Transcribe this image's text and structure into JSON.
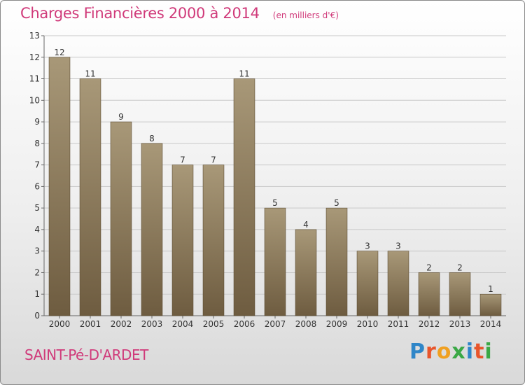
{
  "header": {
    "title": "Charges Financières 2000 à 2014",
    "subtitle": "(en milliers d'€)"
  },
  "footer": {
    "commune": "SAINT-Pé-D'ARDET",
    "brand": "Proxiti"
  },
  "colors": {
    "title": "#d03a7a",
    "bar_light": "#a89878",
    "bar_dark": "#6e5c40",
    "grid": "#c8c8c8",
    "brand_letters": [
      "#2f86c8",
      "#e8552b",
      "#f0a020",
      "#3aa845",
      "#2f86c8",
      "#e8552b",
      "#3aa845"
    ]
  },
  "chart_data": {
    "type": "bar",
    "categories": [
      "2000",
      "2001",
      "2002",
      "2003",
      "2004",
      "2005",
      "2006",
      "2007",
      "2008",
      "2009",
      "2010",
      "2011",
      "2012",
      "2013",
      "2014"
    ],
    "values": [
      12,
      11,
      9,
      8,
      7,
      7,
      11,
      5,
      4,
      5,
      3,
      3,
      2,
      2,
      1
    ],
    "title": "Charges Financières 2000 à 2014",
    "ylabel": "",
    "xlabel": "",
    "ylim": [
      0,
      13
    ],
    "yticks": [
      0,
      1,
      2,
      3,
      4,
      5,
      6,
      7,
      8,
      9,
      10,
      11,
      12,
      13
    ],
    "grid": true,
    "data_labels": true
  }
}
